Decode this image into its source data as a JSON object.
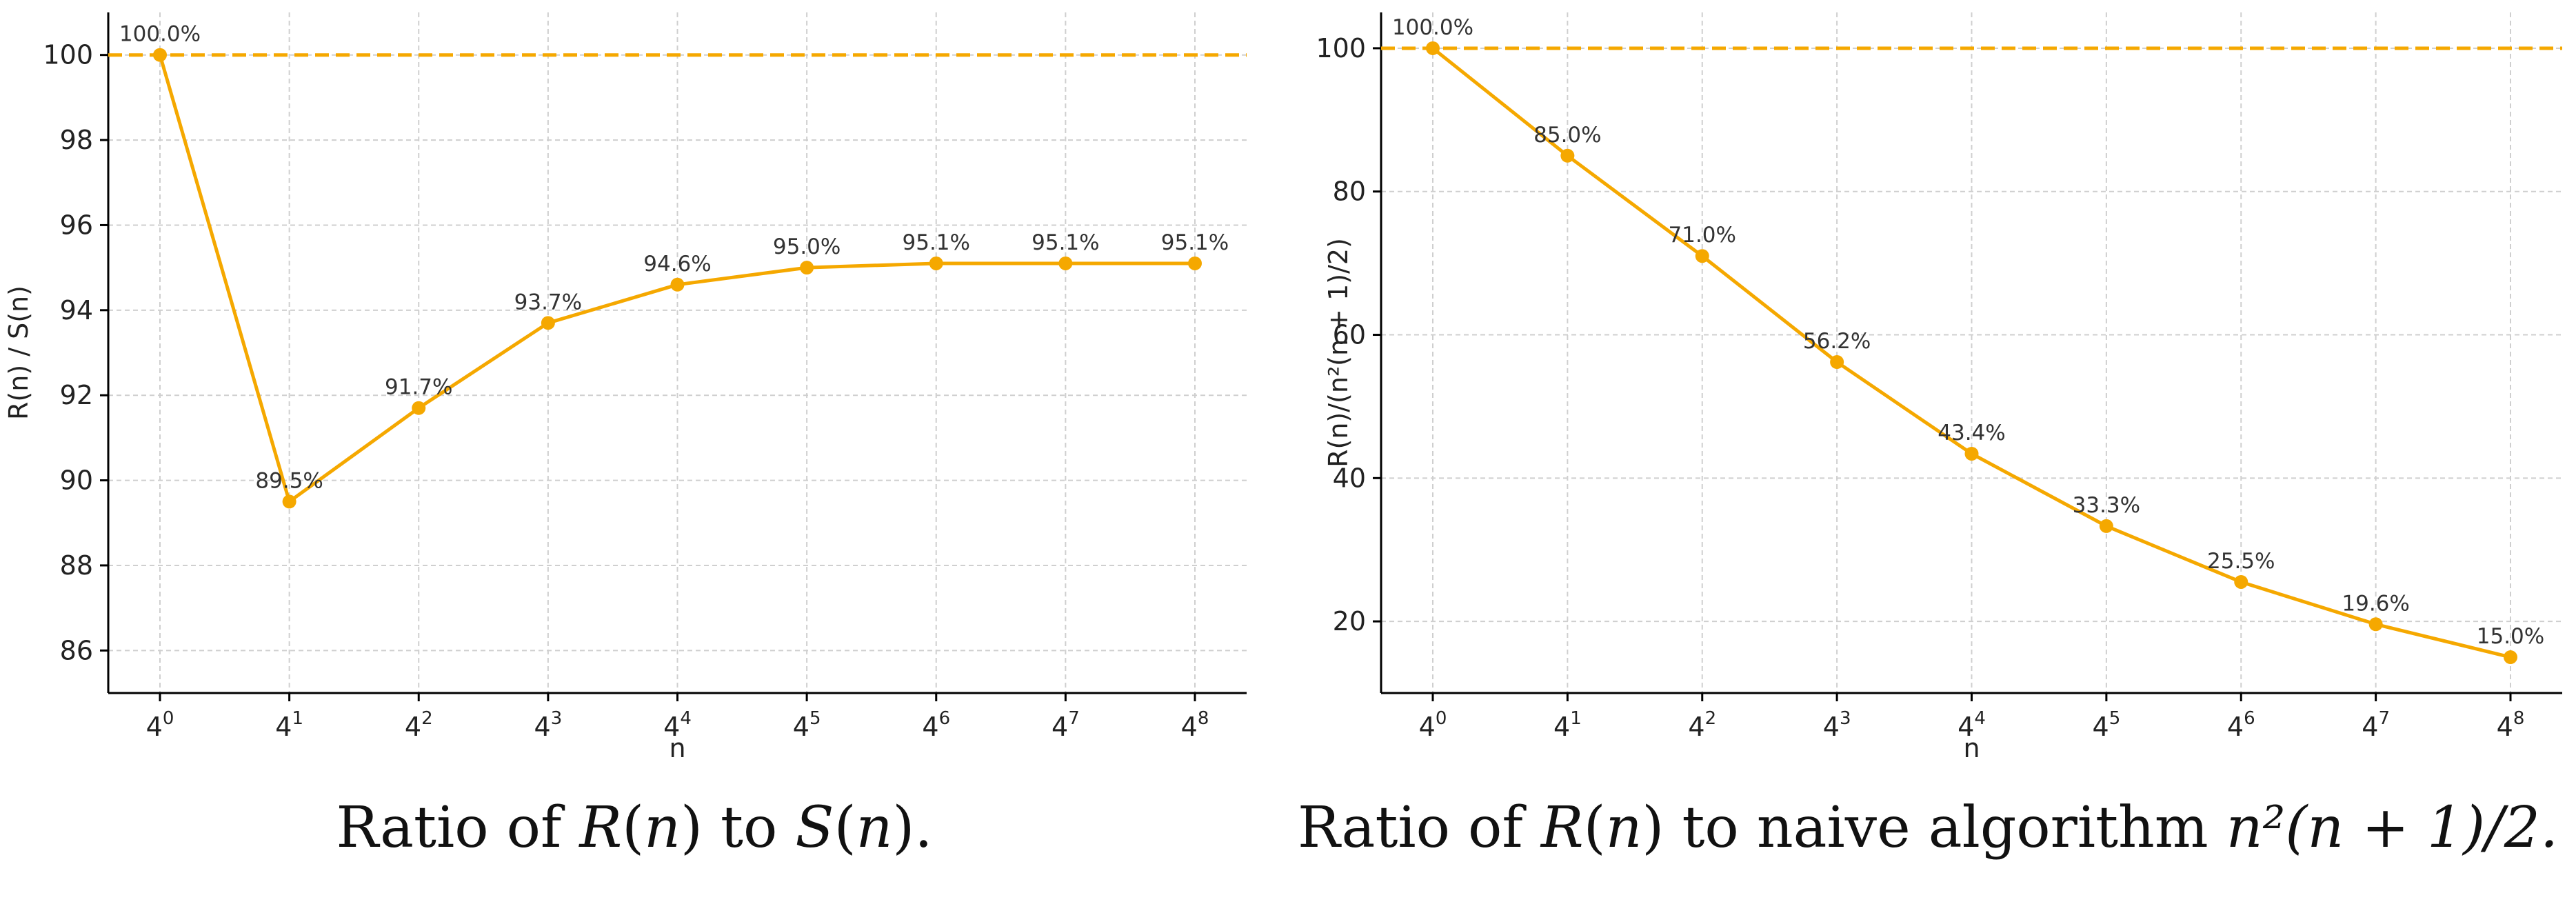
{
  "chart_data": [
    {
      "type": "line",
      "title": "",
      "caption": {
        "prefix": "Ratio of ",
        "r": "R",
        "n1": "n",
        "mid": " to ",
        "s": "S",
        "n2": "n",
        "end": "."
      },
      "xlabel": "n",
      "ylabel": "R(n) / S(n)",
      "x_base": "4",
      "x_exponents": [
        "0",
        "1",
        "2",
        "3",
        "4",
        "5",
        "6",
        "7",
        "8"
      ],
      "ylim": [
        85,
        101
      ],
      "yticks": [
        86,
        88,
        90,
        92,
        94,
        96,
        98,
        100
      ],
      "reference_line": 100,
      "series": [
        {
          "values": [
            100.0,
            89.5,
            91.7,
            93.7,
            94.6,
            95.0,
            95.1,
            95.1,
            95.1
          ],
          "labels": [
            "100.0%",
            "89.5%",
            "91.7%",
            "93.7%",
            "94.6%",
            "95.0%",
            "95.1%",
            "95.1%",
            "95.1%"
          ]
        }
      ],
      "color": "#f5a800",
      "grid": true
    },
    {
      "type": "line",
      "title": "",
      "caption": {
        "prefix": "Ratio of ",
        "r": "R",
        "n1": "n",
        "mid": " to naive algorithm ",
        "tail": "n²(n + 1)/2."
      },
      "xlabel": "n",
      "ylabel": "R(n)/(n²(n + 1)/2)",
      "x_base": "4",
      "x_exponents": [
        "0",
        "1",
        "2",
        "3",
        "4",
        "5",
        "6",
        "7",
        "8"
      ],
      "ylim": [
        10,
        105
      ],
      "yticks": [
        20,
        40,
        60,
        80,
        100
      ],
      "reference_line": 100,
      "series": [
        {
          "values": [
            100.0,
            85.0,
            71.0,
            56.2,
            43.4,
            33.3,
            25.5,
            19.6,
            15.0
          ],
          "labels": [
            "100.0%",
            "85.0%",
            "71.0%",
            "56.2%",
            "43.4%",
            "33.3%",
            "25.5%",
            "19.6%",
            "15.0%"
          ]
        }
      ],
      "color": "#f5a800",
      "grid": true
    }
  ]
}
